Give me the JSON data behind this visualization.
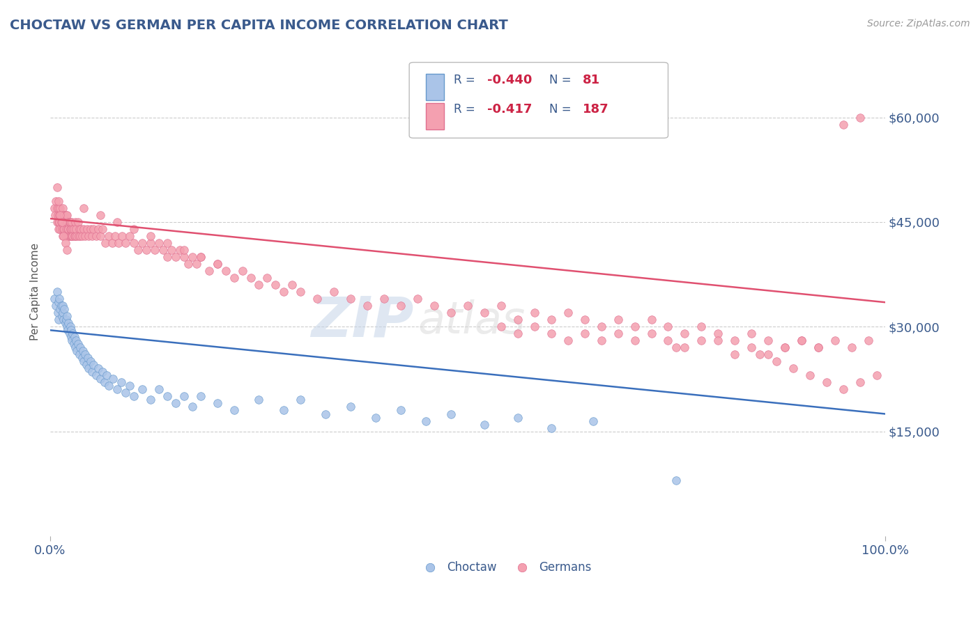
{
  "title": "CHOCTAW VS GERMAN PER CAPITA INCOME CORRELATION CHART",
  "source": "Source: ZipAtlas.com",
  "ylabel": "Per Capita Income",
  "xlim": [
    0,
    1.0
  ],
  "ylim": [
    0,
    70000
  ],
  "bg_color": "#ffffff",
  "grid_color": "#cccccc",
  "title_color": "#3a5a8c",
  "choctaw_color": "#aac4e8",
  "choctaw_edge": "#6699cc",
  "german_color": "#f4a0b0",
  "german_edge": "#e07090",
  "choctaw_line_color": "#3a6fbc",
  "german_line_color": "#e05070",
  "choctaw_line_y0": 29500,
  "choctaw_line_y1": 17500,
  "german_line_y0": 45500,
  "german_line_y1": 33500,
  "marker_size": 70,
  "watermark_zip": "ZIP",
  "watermark_atlas": "atlas",
  "choctaw_x": [
    0.005,
    0.007,
    0.008,
    0.009,
    0.01,
    0.01,
    0.011,
    0.012,
    0.013,
    0.014,
    0.015,
    0.015,
    0.016,
    0.017,
    0.018,
    0.019,
    0.02,
    0.02,
    0.021,
    0.022,
    0.023,
    0.024,
    0.025,
    0.025,
    0.026,
    0.027,
    0.028,
    0.029,
    0.03,
    0.031,
    0.032,
    0.033,
    0.035,
    0.036,
    0.038,
    0.039,
    0.04,
    0.042,
    0.043,
    0.045,
    0.046,
    0.048,
    0.05,
    0.052,
    0.055,
    0.058,
    0.06,
    0.063,
    0.065,
    0.068,
    0.07,
    0.075,
    0.08,
    0.085,
    0.09,
    0.095,
    0.1,
    0.11,
    0.12,
    0.13,
    0.14,
    0.15,
    0.16,
    0.17,
    0.18,
    0.2,
    0.22,
    0.25,
    0.28,
    0.3,
    0.33,
    0.36,
    0.39,
    0.42,
    0.45,
    0.48,
    0.52,
    0.56,
    0.6,
    0.65,
    0.75
  ],
  "choctaw_y": [
    34000,
    33000,
    35000,
    32000,
    33500,
    31000,
    34000,
    32500,
    33000,
    31500,
    32000,
    33000,
    31000,
    32500,
    30500,
    31000,
    30000,
    31500,
    29500,
    30500,
    29000,
    30000,
    28500,
    29500,
    28000,
    29000,
    27500,
    28500,
    27000,
    28000,
    26500,
    27500,
    26000,
    27000,
    25500,
    26500,
    25000,
    26000,
    24500,
    25500,
    24000,
    25000,
    23500,
    24500,
    23000,
    24000,
    22500,
    23500,
    22000,
    23000,
    21500,
    22500,
    21000,
    22000,
    20500,
    21500,
    20000,
    21000,
    19500,
    21000,
    20000,
    19000,
    20000,
    18500,
    20000,
    19000,
    18000,
    19500,
    18000,
    19500,
    17500,
    18500,
    17000,
    18000,
    16500,
    17500,
    16000,
    17000,
    15500,
    16500,
    8000
  ],
  "german_x": [
    0.005,
    0.006,
    0.007,
    0.008,
    0.008,
    0.009,
    0.01,
    0.01,
    0.01,
    0.011,
    0.011,
    0.012,
    0.012,
    0.013,
    0.013,
    0.014,
    0.014,
    0.015,
    0.015,
    0.015,
    0.016,
    0.016,
    0.016,
    0.017,
    0.017,
    0.018,
    0.018,
    0.019,
    0.019,
    0.02,
    0.02,
    0.02,
    0.021,
    0.021,
    0.022,
    0.022,
    0.023,
    0.023,
    0.024,
    0.024,
    0.025,
    0.025,
    0.026,
    0.026,
    0.027,
    0.027,
    0.028,
    0.029,
    0.03,
    0.03,
    0.031,
    0.032,
    0.033,
    0.034,
    0.035,
    0.036,
    0.037,
    0.038,
    0.04,
    0.042,
    0.044,
    0.046,
    0.048,
    0.05,
    0.052,
    0.055,
    0.058,
    0.06,
    0.063,
    0.066,
    0.07,
    0.074,
    0.078,
    0.082,
    0.086,
    0.09,
    0.095,
    0.1,
    0.105,
    0.11,
    0.115,
    0.12,
    0.125,
    0.13,
    0.135,
    0.14,
    0.145,
    0.15,
    0.155,
    0.16,
    0.165,
    0.17,
    0.175,
    0.18,
    0.19,
    0.2,
    0.21,
    0.22,
    0.23,
    0.24,
    0.25,
    0.26,
    0.27,
    0.28,
    0.29,
    0.3,
    0.32,
    0.34,
    0.36,
    0.38,
    0.4,
    0.42,
    0.44,
    0.46,
    0.48,
    0.5,
    0.52,
    0.54,
    0.56,
    0.58,
    0.6,
    0.62,
    0.64,
    0.66,
    0.68,
    0.7,
    0.72,
    0.74,
    0.76,
    0.78,
    0.8,
    0.82,
    0.84,
    0.86,
    0.88,
    0.9,
    0.92,
    0.94,
    0.96,
    0.98,
    0.75,
    0.8,
    0.82,
    0.84,
    0.86,
    0.88,
    0.9,
    0.92,
    0.78,
    0.76,
    0.74,
    0.72,
    0.7,
    0.68,
    0.66,
    0.64,
    0.62,
    0.6,
    0.58,
    0.56,
    0.54,
    0.008,
    0.01,
    0.012,
    0.014,
    0.016,
    0.018,
    0.02,
    0.85,
    0.87,
    0.89,
    0.91,
    0.93,
    0.95,
    0.97,
    0.99,
    0.04,
    0.06,
    0.08,
    0.1,
    0.12,
    0.14,
    0.16,
    0.18,
    0.2,
    0.95,
    0.97
  ],
  "german_y": [
    47000,
    46000,
    48000,
    45000,
    47000,
    46000,
    45000,
    47000,
    44000,
    46000,
    45000,
    47000,
    44000,
    46000,
    45000,
    46000,
    44000,
    47000,
    45000,
    43000,
    46000,
    44000,
    45000,
    46000,
    44000,
    45000,
    43000,
    46000,
    44000,
    45000,
    43000,
    46000,
    44000,
    45000,
    43000,
    44000,
    45000,
    43000,
    44000,
    45000,
    43000,
    44000,
    45000,
    43000,
    44000,
    43000,
    44000,
    43000,
    45000,
    43000,
    44000,
    43000,
    45000,
    43000,
    44000,
    43000,
    44000,
    43000,
    44000,
    43000,
    44000,
    43000,
    44000,
    43000,
    44000,
    43000,
    44000,
    43000,
    44000,
    42000,
    43000,
    42000,
    43000,
    42000,
    43000,
    42000,
    43000,
    42000,
    41000,
    42000,
    41000,
    42000,
    41000,
    42000,
    41000,
    40000,
    41000,
    40000,
    41000,
    40000,
    39000,
    40000,
    39000,
    40000,
    38000,
    39000,
    38000,
    37000,
    38000,
    37000,
    36000,
    37000,
    36000,
    35000,
    36000,
    35000,
    34000,
    35000,
    34000,
    33000,
    34000,
    33000,
    34000,
    33000,
    32000,
    33000,
    32000,
    33000,
    31000,
    32000,
    31000,
    32000,
    31000,
    30000,
    31000,
    30000,
    31000,
    30000,
    29000,
    30000,
    29000,
    28000,
    29000,
    28000,
    27000,
    28000,
    27000,
    28000,
    27000,
    28000,
    27000,
    28000,
    26000,
    27000,
    26000,
    27000,
    28000,
    27000,
    28000,
    27000,
    28000,
    29000,
    28000,
    29000,
    28000,
    29000,
    28000,
    29000,
    30000,
    29000,
    30000,
    50000,
    48000,
    46000,
    45000,
    43000,
    42000,
    41000,
    26000,
    25000,
    24000,
    23000,
    22000,
    21000,
    22000,
    23000,
    47000,
    46000,
    45000,
    44000,
    43000,
    42000,
    41000,
    40000,
    39000,
    59000,
    60000
  ]
}
